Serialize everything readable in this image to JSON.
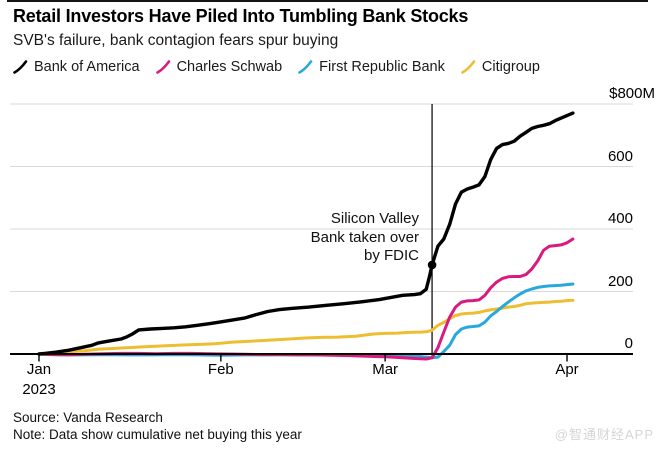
{
  "header": {
    "title": "Retail Investors Have Piled Into Tumbling Bank Stocks",
    "subtitle": "SVB's failure, bank contagion fears spur buying"
  },
  "legend": [
    {
      "label": "Bank of America",
      "color": "#000000"
    },
    {
      "label": "Charles Schwab",
      "color": "#d81b7d"
    },
    {
      "label": "First Republic Bank",
      "color": "#29a8dc"
    },
    {
      "label": "Citigroup",
      "color": "#eebd31"
    }
  ],
  "annotation": {
    "lines": [
      "Silicon Valley",
      "Bank taken over",
      "by FDIC"
    ]
  },
  "footer": {
    "source": "Source: Vanda Research",
    "note": "Note: Data show cumulative net buying this year"
  },
  "watermark": "@智通财经APP",
  "colors": {
    "gridline": "#d9d9d9",
    "axis": "#000000",
    "event_line": "#000000"
  },
  "chart_data": {
    "type": "line",
    "title": "Retail Investors Have Piled Into Tumbling Bank Stocks",
    "subtitle": "SVB's failure, bank contagion fears spur buying",
    "x_unit": "day of 2023 (Jan 1 = 1)",
    "y_unit": "cumulative net buying, $M",
    "ylim": [
      0,
      800
    ],
    "grid": "horizontal",
    "legend_position": "top",
    "y_axis": {
      "ticks": [
        {
          "label": "$800M",
          "value": 800
        },
        {
          "label": "600",
          "value": 600
        },
        {
          "label": "400",
          "value": 400
        },
        {
          "label": "200",
          "value": 200
        },
        {
          "label": "0",
          "value": 0
        }
      ]
    },
    "x_axis": {
      "ticks": [
        {
          "label": "Jan",
          "sub": "2023",
          "day": 1
        },
        {
          "label": "Feb",
          "day": 32
        },
        {
          "label": "Mar",
          "day": 60
        },
        {
          "label": "Apr",
          "day": 91
        }
      ]
    },
    "event": {
      "day": 68,
      "marker_series": "Bank of America",
      "label_lines": [
        "Silicon Valley",
        "Bank taken over",
        "by FDIC"
      ]
    },
    "series": [
      {
        "name": "Citigroup",
        "color": "#eebd31",
        "width": 3,
        "points": [
          [
            1,
            0
          ],
          [
            3,
            2
          ],
          [
            5,
            5
          ],
          [
            7,
            8
          ],
          [
            9,
            11
          ],
          [
            11,
            15
          ],
          [
            14,
            18
          ],
          [
            17,
            21
          ],
          [
            20,
            24
          ],
          [
            23,
            27
          ],
          [
            26,
            29
          ],
          [
            29,
            31
          ],
          [
            31,
            33
          ],
          [
            34,
            38
          ],
          [
            37,
            41
          ],
          [
            40,
            44
          ],
          [
            43,
            47
          ],
          [
            46,
            51
          ],
          [
            49,
            53
          ],
          [
            52,
            54
          ],
          [
            55,
            57
          ],
          [
            58,
            64
          ],
          [
            60,
            66
          ],
          [
            62,
            67
          ],
          [
            64,
            69
          ],
          [
            66,
            70
          ],
          [
            67,
            71
          ],
          [
            68,
            76
          ],
          [
            69,
            92
          ],
          [
            70,
            101
          ],
          [
            71,
            113
          ],
          [
            72,
            123
          ],
          [
            73,
            128
          ],
          [
            74,
            130
          ],
          [
            75,
            131
          ],
          [
            76,
            133
          ],
          [
            77,
            138
          ],
          [
            78,
            141
          ],
          [
            79,
            144
          ],
          [
            80,
            147
          ],
          [
            81,
            150
          ],
          [
            82,
            152
          ],
          [
            83,
            156
          ],
          [
            84,
            161
          ],
          [
            85,
            163
          ],
          [
            86,
            164
          ],
          [
            87,
            165
          ],
          [
            88,
            166
          ],
          [
            89,
            168
          ],
          [
            90,
            169
          ],
          [
            91,
            171
          ],
          [
            92,
            172
          ]
        ]
      },
      {
        "name": "First Republic Bank",
        "color": "#29a8dc",
        "width": 3,
        "points": [
          [
            1,
            0
          ],
          [
            4,
            -2
          ],
          [
            8,
            -3
          ],
          [
            12,
            -2
          ],
          [
            16,
            -3
          ],
          [
            20,
            -3
          ],
          [
            24,
            -2
          ],
          [
            28,
            -3
          ],
          [
            32,
            -4
          ],
          [
            36,
            -3
          ],
          [
            40,
            -3
          ],
          [
            44,
            -2
          ],
          [
            48,
            -3
          ],
          [
            52,
            -3
          ],
          [
            56,
            -4
          ],
          [
            60,
            -5
          ],
          [
            63,
            -6
          ],
          [
            66,
            -8
          ],
          [
            68,
            -12
          ],
          [
            69,
            -10
          ],
          [
            70,
            8
          ],
          [
            71,
            28
          ],
          [
            72,
            62
          ],
          [
            73,
            80
          ],
          [
            74,
            86
          ],
          [
            75,
            88
          ],
          [
            76,
            90
          ],
          [
            77,
            102
          ],
          [
            78,
            122
          ],
          [
            79,
            136
          ],
          [
            80,
            152
          ],
          [
            81,
            166
          ],
          [
            82,
            180
          ],
          [
            83,
            192
          ],
          [
            84,
            202
          ],
          [
            85,
            208
          ],
          [
            86,
            213
          ],
          [
            87,
            216
          ],
          [
            88,
            218
          ],
          [
            89,
            219
          ],
          [
            90,
            220
          ],
          [
            91,
            222
          ],
          [
            92,
            224
          ]
        ]
      },
      {
        "name": "Charles Schwab",
        "color": "#d81b7d",
        "width": 3,
        "points": [
          [
            1,
            0
          ],
          [
            3,
            -2
          ],
          [
            6,
            -3
          ],
          [
            9,
            -1
          ],
          [
            12,
            1
          ],
          [
            15,
            2
          ],
          [
            18,
            2
          ],
          [
            21,
            1
          ],
          [
            24,
            2
          ],
          [
            27,
            2
          ],
          [
            30,
            1
          ],
          [
            33,
            0
          ],
          [
            36,
            -1
          ],
          [
            39,
            -2
          ],
          [
            42,
            -2
          ],
          [
            45,
            -3
          ],
          [
            48,
            -3
          ],
          [
            51,
            -4
          ],
          [
            54,
            -5
          ],
          [
            57,
            -7
          ],
          [
            60,
            -9
          ],
          [
            62,
            -11
          ],
          [
            64,
            -13
          ],
          [
            66,
            -15
          ],
          [
            67,
            -16
          ],
          [
            68,
            -12
          ],
          [
            69,
            20
          ],
          [
            70,
            70
          ],
          [
            71,
            118
          ],
          [
            72,
            150
          ],
          [
            73,
            166
          ],
          [
            74,
            170
          ],
          [
            75,
            171
          ],
          [
            76,
            173
          ],
          [
            77,
            188
          ],
          [
            78,
            212
          ],
          [
            79,
            230
          ],
          [
            80,
            242
          ],
          [
            81,
            247
          ],
          [
            82,
            248
          ],
          [
            83,
            248
          ],
          [
            84,
            254
          ],
          [
            85,
            272
          ],
          [
            86,
            298
          ],
          [
            87,
            332
          ],
          [
            88,
            345
          ],
          [
            89,
            347
          ],
          [
            90,
            349
          ],
          [
            91,
            356
          ],
          [
            92,
            368
          ]
        ]
      },
      {
        "name": "Bank of America",
        "color": "#000000",
        "width": 3.4,
        "points": [
          [
            1,
            0
          ],
          [
            2,
            2
          ],
          [
            4,
            6
          ],
          [
            6,
            12
          ],
          [
            8,
            20
          ],
          [
            10,
            28
          ],
          [
            11,
            35
          ],
          [
            13,
            42
          ],
          [
            15,
            48
          ],
          [
            16,
            55
          ],
          [
            17,
            65
          ],
          [
            18,
            77
          ],
          [
            20,
            80
          ],
          [
            22,
            82
          ],
          [
            24,
            84
          ],
          [
            26,
            87
          ],
          [
            28,
            92
          ],
          [
            30,
            97
          ],
          [
            31,
            100
          ],
          [
            33,
            106
          ],
          [
            36,
            115
          ],
          [
            38,
            126
          ],
          [
            40,
            136
          ],
          [
            42,
            142
          ],
          [
            44,
            146
          ],
          [
            47,
            150
          ],
          [
            50,
            156
          ],
          [
            53,
            161
          ],
          [
            56,
            167
          ],
          [
            59,
            174
          ],
          [
            61,
            181
          ],
          [
            63,
            188
          ],
          [
            65,
            190
          ],
          [
            66,
            193
          ],
          [
            67,
            207
          ],
          [
            67.5,
            243
          ],
          [
            68,
            285
          ],
          [
            69,
            345
          ],
          [
            70,
            368
          ],
          [
            71,
            415
          ],
          [
            72,
            480
          ],
          [
            73,
            518
          ],
          [
            74,
            528
          ],
          [
            75,
            534
          ],
          [
            76,
            541
          ],
          [
            77,
            568
          ],
          [
            78,
            622
          ],
          [
            79,
            658
          ],
          [
            80,
            670
          ],
          [
            81,
            674
          ],
          [
            82,
            681
          ],
          [
            83,
            697
          ],
          [
            84,
            709
          ],
          [
            85,
            722
          ],
          [
            86,
            728
          ],
          [
            87,
            732
          ],
          [
            88,
            737
          ],
          [
            89,
            747
          ],
          [
            90,
            755
          ],
          [
            91,
            763
          ],
          [
            92,
            771
          ]
        ]
      }
    ]
  }
}
